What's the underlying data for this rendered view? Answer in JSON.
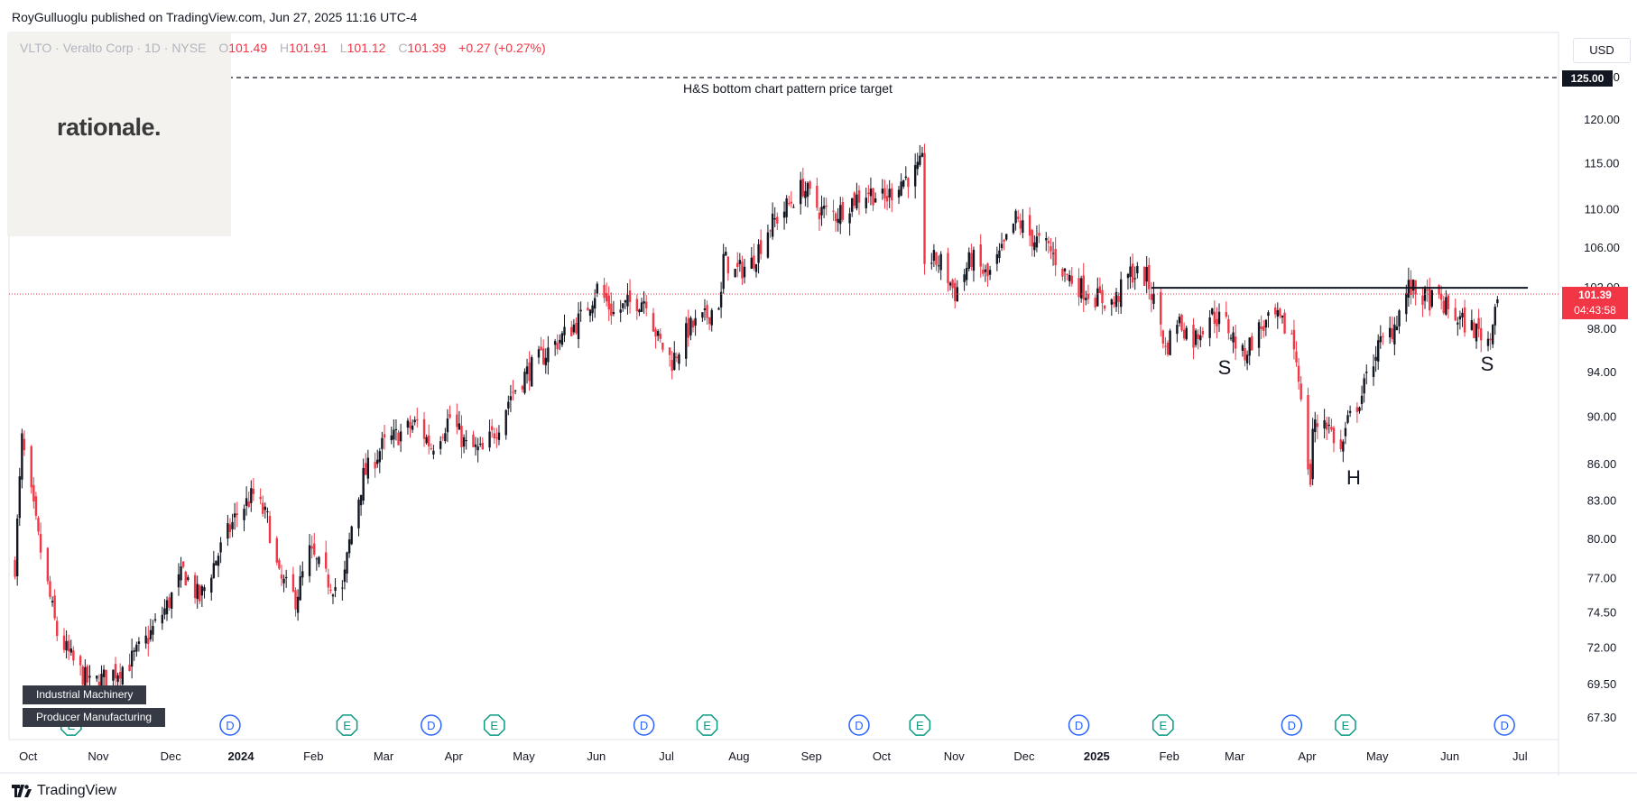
{
  "header": {
    "published": "RoyGulluoglu published on TradingView.com, Jun 27, 2025 11:16 UTC-4"
  },
  "symbol": {
    "description": "VLTO · Veralto Corp · 1D · NYSE",
    "open_label": "O",
    "open": "101.49",
    "high_label": "H",
    "high": "101.91",
    "low_label": "L",
    "low": "101.12",
    "close_label": "C",
    "close": "101.39",
    "change": "+0.27 (+0.27%)"
  },
  "logo": {
    "text": "rationale."
  },
  "currency": "USD",
  "last_price": {
    "value": "101.39",
    "countdown": "04:43:58"
  },
  "target_price_label": "125.00",
  "annotations": {
    "target_line_text": "H&S bottom chart pattern price target",
    "left_shoulder": "S",
    "head": "H",
    "right_shoulder": "S"
  },
  "sector_tags": [
    "Industrial Machinery",
    "Producer Manufacturing"
  ],
  "footer": {
    "brand": "TradingView"
  },
  "colors": {
    "up": "#131722",
    "down": "#f23645",
    "last_price_bg": "#f23645",
    "dividend": "#2962ff",
    "earnings": "#089981"
  },
  "chart_data": {
    "type": "candlestick",
    "symbol": "VLTO",
    "timeframe": "1D",
    "price_axis_ticks": [
      125.0,
      120.0,
      115.0,
      110.0,
      106.0,
      102.0,
      98.0,
      94.0,
      90.0,
      86.0,
      83.0,
      80.0,
      77.0,
      74.5,
      72.0,
      69.5,
      67.3
    ],
    "price_axis_scale": "log",
    "x_labels": [
      "Oct",
      "Nov",
      "Dec",
      "2024",
      "Feb",
      "Mar",
      "Apr",
      "May",
      "Jun",
      "Jul",
      "Aug",
      "Sep",
      "Oct",
      "Nov",
      "Dec",
      "2025",
      "Feb",
      "Mar",
      "Apr",
      "May",
      "Jun",
      "Jul"
    ],
    "x_labels_bold": [
      "2024",
      "2025"
    ],
    "target_price": 125.0,
    "neckline_price": 102.0,
    "last_price": 101.39,
    "price_path": [
      {
        "date": "2023-10-02",
        "close": 78
      },
      {
        "date": "2023-10-05",
        "close": 88
      },
      {
        "date": "2023-10-12",
        "close": 80
      },
      {
        "date": "2023-10-20",
        "close": 73
      },
      {
        "date": "2023-10-27",
        "close": 71
      },
      {
        "date": "2023-11-03",
        "close": 69.5
      },
      {
        "date": "2023-11-10",
        "close": 70
      },
      {
        "date": "2023-11-20",
        "close": 71
      },
      {
        "date": "2023-11-27",
        "close": 72.5
      },
      {
        "date": "2023-12-06",
        "close": 75
      },
      {
        "date": "2023-12-13",
        "close": 77.5
      },
      {
        "date": "2023-12-20",
        "close": 75.5
      },
      {
        "date": "2023-12-27",
        "close": 78.5
      },
      {
        "date": "2024-01-05",
        "close": 82
      },
      {
        "date": "2024-01-12",
        "close": 83.5
      },
      {
        "date": "2024-01-18",
        "close": 81.5
      },
      {
        "date": "2024-01-23",
        "close": 77
      },
      {
        "date": "2024-01-30",
        "close": 75.5
      },
      {
        "date": "2024-02-05",
        "close": 79
      },
      {
        "date": "2024-02-12",
        "close": 77
      },
      {
        "date": "2024-02-19",
        "close": 76
      },
      {
        "date": "2024-02-23",
        "close": 81
      },
      {
        "date": "2024-02-28",
        "close": 85
      },
      {
        "date": "2024-03-07",
        "close": 87.5
      },
      {
        "date": "2024-03-14",
        "close": 88.5
      },
      {
        "date": "2024-03-22",
        "close": 89.5
      },
      {
        "date": "2024-03-28",
        "close": 87.5
      },
      {
        "date": "2024-04-05",
        "close": 90
      },
      {
        "date": "2024-04-12",
        "close": 87.5
      },
      {
        "date": "2024-04-19",
        "close": 87
      },
      {
        "date": "2024-04-26",
        "close": 89.5
      },
      {
        "date": "2024-05-01",
        "close": 92
      },
      {
        "date": "2024-05-08",
        "close": 94
      },
      {
        "date": "2024-05-17",
        "close": 96
      },
      {
        "date": "2024-05-24",
        "close": 97.5
      },
      {
        "date": "2024-05-31",
        "close": 99
      },
      {
        "date": "2024-06-07",
        "close": 102
      },
      {
        "date": "2024-06-14",
        "close": 99.5
      },
      {
        "date": "2024-06-21",
        "close": 100.5
      },
      {
        "date": "2024-06-28",
        "close": 101
      },
      {
        "date": "2024-07-03",
        "close": 97
      },
      {
        "date": "2024-07-09",
        "close": 95
      },
      {
        "date": "2024-07-16",
        "close": 98
      },
      {
        "date": "2024-07-23",
        "close": 99
      },
      {
        "date": "2024-07-30",
        "close": 101
      },
      {
        "date": "2024-07-31",
        "close": 105
      },
      {
        "date": "2024-08-05",
        "close": 103.5
      },
      {
        "date": "2024-08-12",
        "close": 104.5
      },
      {
        "date": "2024-08-19",
        "close": 108
      },
      {
        "date": "2024-08-26",
        "close": 110
      },
      {
        "date": "2024-09-03",
        "close": 112.5
      },
      {
        "date": "2024-09-10",
        "close": 110
      },
      {
        "date": "2024-09-17",
        "close": 109.5
      },
      {
        "date": "2024-09-24",
        "close": 111
      },
      {
        "date": "2024-10-01",
        "close": 112
      },
      {
        "date": "2024-10-08",
        "close": 111
      },
      {
        "date": "2024-10-14",
        "close": 113
      },
      {
        "date": "2024-10-21",
        "close": 114
      },
      {
        "date": "2024-10-24",
        "close": 115
      },
      {
        "date": "2024-10-25",
        "close": 105
      },
      {
        "date": "2024-11-01",
        "close": 104.5
      },
      {
        "date": "2024-11-07",
        "close": 101.5
      },
      {
        "date": "2024-11-14",
        "close": 105
      },
      {
        "date": "2024-11-21",
        "close": 103
      },
      {
        "date": "2024-11-27",
        "close": 105.5
      },
      {
        "date": "2024-12-03",
        "close": 109
      },
      {
        "date": "2024-12-10",
        "close": 107
      },
      {
        "date": "2024-12-17",
        "close": 106
      },
      {
        "date": "2024-12-24",
        "close": 103.5
      },
      {
        "date": "2024-12-31",
        "close": 102
      },
      {
        "date": "2025-01-07",
        "close": 101
      },
      {
        "date": "2025-01-14",
        "close": 100.5
      },
      {
        "date": "2025-01-21",
        "close": 103.5
      },
      {
        "date": "2025-01-28",
        "close": 103
      },
      {
        "date": "2025-02-03",
        "close": 98.5
      },
      {
        "date": "2025-02-05",
        "close": 96
      },
      {
        "date": "2025-02-10",
        "close": 99
      },
      {
        "date": "2025-02-17",
        "close": 97
      },
      {
        "date": "2025-02-24",
        "close": 99.5
      },
      {
        "date": "2025-03-03",
        "close": 98.5
      },
      {
        "date": "2025-03-10",
        "close": 95.5
      },
      {
        "date": "2025-03-17",
        "close": 98
      },
      {
        "date": "2025-03-24",
        "close": 99
      },
      {
        "date": "2025-03-31",
        "close": 97.5
      },
      {
        "date": "2025-04-03",
        "close": 94
      },
      {
        "date": "2025-04-04",
        "close": 91
      },
      {
        "date": "2025-04-07",
        "close": 86
      },
      {
        "date": "2025-04-08",
        "close": 84.5
      },
      {
        "date": "2025-04-09",
        "close": 89
      },
      {
        "date": "2025-04-14",
        "close": 90
      },
      {
        "date": "2025-04-21",
        "close": 87
      },
      {
        "date": "2025-04-24",
        "close": 89.5
      },
      {
        "date": "2025-04-30",
        "close": 92
      },
      {
        "date": "2025-05-06",
        "close": 96
      },
      {
        "date": "2025-05-13",
        "close": 98
      },
      {
        "date": "2025-05-20",
        "close": 102
      },
      {
        "date": "2025-05-27",
        "close": 101
      },
      {
        "date": "2025-06-03",
        "close": 100.5
      },
      {
        "date": "2025-06-10",
        "close": 99
      },
      {
        "date": "2025-06-17",
        "close": 98
      },
      {
        "date": "2025-06-24",
        "close": 97
      },
      {
        "date": "2025-06-25",
        "close": 99.5
      },
      {
        "date": "2025-06-27",
        "close": 101.39
      }
    ],
    "events": [
      {
        "type": "E",
        "date": "2023-10-26"
      },
      {
        "type": "D",
        "date": "2024-01-02"
      },
      {
        "type": "E",
        "date": "2024-02-21"
      },
      {
        "type": "D",
        "date": "2024-03-28"
      },
      {
        "type": "E",
        "date": "2024-04-24"
      },
      {
        "type": "D",
        "date": "2024-06-27"
      },
      {
        "type": "E",
        "date": "2024-07-24"
      },
      {
        "type": "D",
        "date": "2024-09-27"
      },
      {
        "type": "E",
        "date": "2024-10-23"
      },
      {
        "type": "D",
        "date": "2024-12-30"
      },
      {
        "type": "E",
        "date": "2025-02-04"
      },
      {
        "type": "D",
        "date": "2025-03-31"
      },
      {
        "type": "E",
        "date": "2025-04-23"
      },
      {
        "type": "D",
        "date": "2025-06-30"
      }
    ]
  }
}
